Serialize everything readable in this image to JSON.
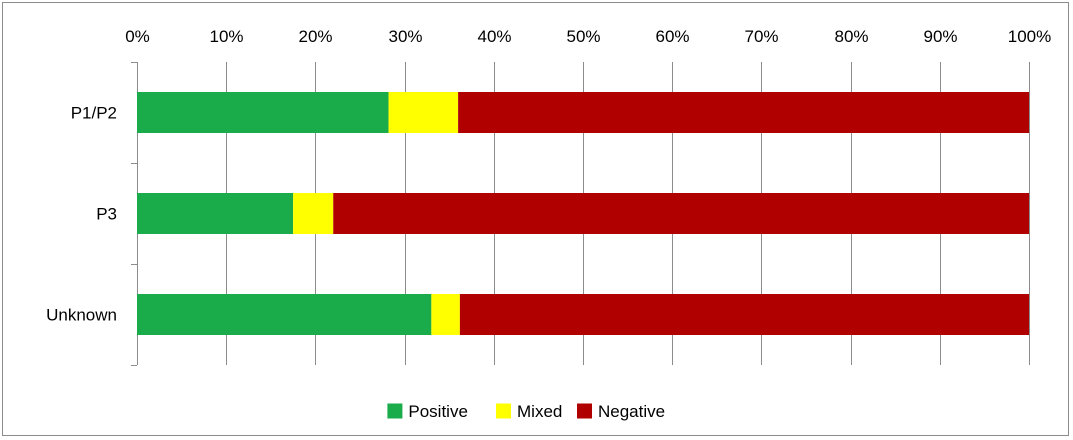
{
  "chart_data": {
    "type": "bar",
    "orientation": "horizontal",
    "stacked": "percent",
    "categories": [
      "P1/P2",
      "P3",
      "Unknown"
    ],
    "series": [
      {
        "name": "Positive",
        "color": "#1aab4b",
        "values": [
          28.2,
          17.5,
          33.0
        ]
      },
      {
        "name": "Mixed",
        "color": "#ffff00",
        "values": [
          7.8,
          4.5,
          3.2
        ]
      },
      {
        "name": "Negative",
        "color": "#b00000",
        "values": [
          64.0,
          78.0,
          63.8
        ]
      }
    ],
    "xlim": [
      0,
      100
    ],
    "x_ticks": [
      "0%",
      "10%",
      "20%",
      "30%",
      "40%",
      "50%",
      "60%",
      "70%",
      "80%",
      "90%",
      "100%"
    ],
    "x_axis_position": "top",
    "grid": "vertical",
    "legend": "bottom"
  }
}
